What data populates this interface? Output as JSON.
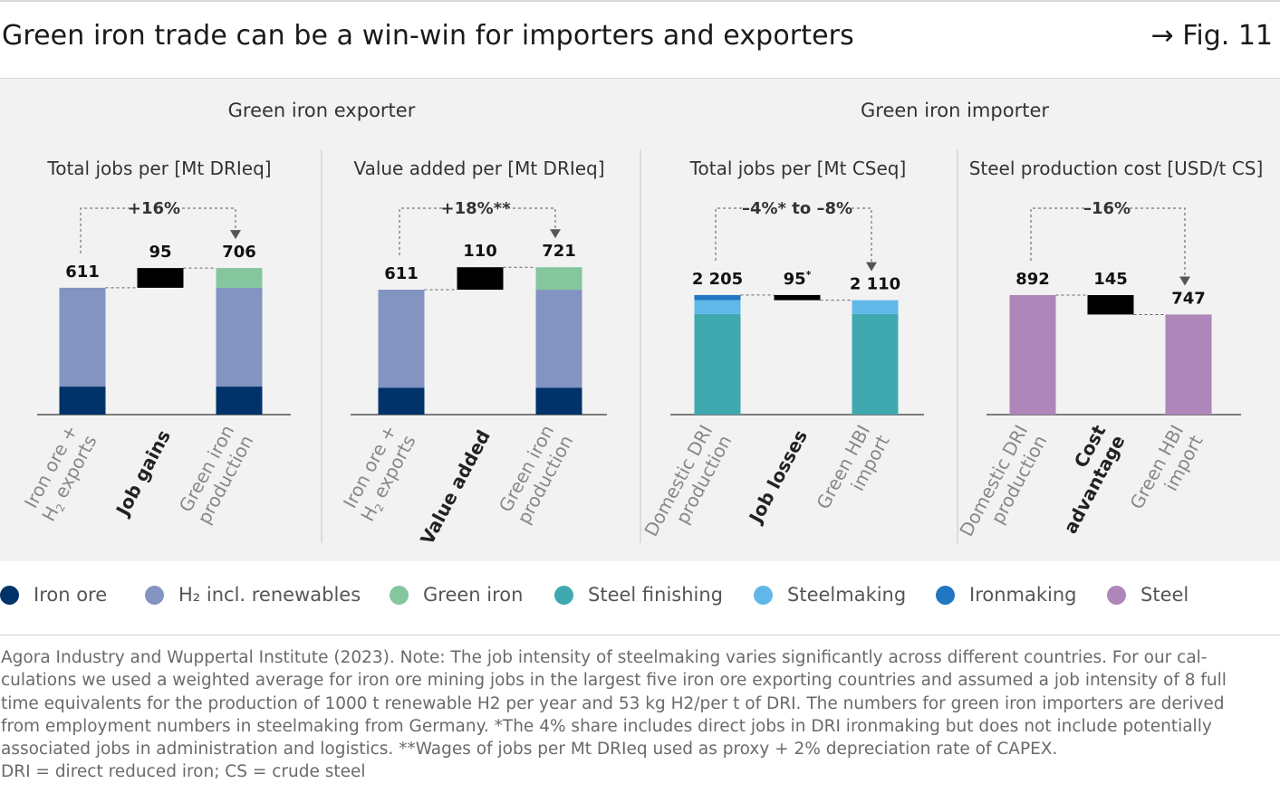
{
  "header": {
    "title": "Green iron trade can be a win-win for importers and exporters",
    "fig_ref": "→ Fig. 11"
  },
  "groups": [
    {
      "label": "Green iron exporter"
    },
    {
      "label": "Green iron importer"
    }
  ],
  "colors": {
    "iron_ore": "#00336a",
    "h2_renewables": "#8394c3",
    "green_iron": "#84c69e",
    "steel_finishing": "#3fa9af",
    "steelmaking": "#60b8e8",
    "ironmaking": "#2176c1",
    "steel": "#ae86b9",
    "delta": "#000000",
    "axis": "#555555"
  },
  "chart_data": [
    {
      "type": "bar",
      "title": "Total jobs per [Mt DRIeq]",
      "categories": [
        "Iron ore + H₂ exports",
        "Job gains",
        "Green iron production"
      ],
      "bars": [
        {
          "kind": "stack",
          "segments": [
            {
              "series": "Iron ore",
              "value": 135
            },
            {
              "series": "H₂ incl. renewables",
              "value": 476
            }
          ],
          "label": "611"
        },
        {
          "kind": "delta",
          "from": 611,
          "to": 706,
          "label": "95"
        },
        {
          "kind": "stack",
          "segments": [
            {
              "series": "Iron ore",
              "value": 135
            },
            {
              "series": "H₂ incl. renewables",
              "value": 476
            },
            {
              "series": "Green iron",
              "value": 95
            }
          ],
          "label": "706"
        }
      ],
      "change_label": "+16%"
    },
    {
      "type": "bar",
      "title": "Value added per [Mt DRIeq]",
      "categories": [
        "Iron ore + H₂ exports",
        "Value added",
        "Green iron production"
      ],
      "bars": [
        {
          "kind": "stack",
          "segments": [
            {
              "series": "Iron ore",
              "value": 132
            },
            {
              "series": "H₂ incl. renewables",
              "value": 479
            }
          ],
          "label": "611"
        },
        {
          "kind": "delta",
          "from": 611,
          "to": 721,
          "label": "110"
        },
        {
          "kind": "stack",
          "segments": [
            {
              "series": "Iron ore",
              "value": 132
            },
            {
              "series": "H₂ incl. renewables",
              "value": 479
            },
            {
              "series": "Green iron",
              "value": 110
            }
          ],
          "label": "721"
        }
      ],
      "change_label": "+18%**"
    },
    {
      "type": "bar",
      "title": "Total jobs per [Mt CSeq]",
      "categories": [
        "Domestic DRI production",
        "Job losses",
        "Green HBI import"
      ],
      "bars": [
        {
          "kind": "stack",
          "segments": [
            {
              "series": "Steel finishing",
              "value": 1855
            },
            {
              "series": "Steelmaking",
              "value": 255
            },
            {
              "series": "Ironmaking",
              "value": 95
            }
          ],
          "label": "2 205"
        },
        {
          "kind": "delta",
          "from": 2205,
          "to": 2110,
          "label": "95*"
        },
        {
          "kind": "stack",
          "segments": [
            {
              "series": "Steel finishing",
              "value": 1855
            },
            {
              "series": "Steelmaking",
              "value": 255
            }
          ],
          "label": "2 110"
        }
      ],
      "change_label": "–4%* to –8%"
    },
    {
      "type": "bar",
      "title": "Steel production cost [USD/t CS]",
      "categories": [
        "Domestic DRI production",
        "Cost advantage",
        "Green HBI import"
      ],
      "bars": [
        {
          "kind": "stack",
          "segments": [
            {
              "series": "Steel",
              "value": 892
            }
          ],
          "label": "892"
        },
        {
          "kind": "delta",
          "from": 892,
          "to": 747,
          "label": "145"
        },
        {
          "kind": "stack",
          "segments": [
            {
              "series": "Steel",
              "value": 747
            }
          ],
          "label": "747"
        }
      ],
      "change_label": "–16%"
    }
  ],
  "legend": [
    {
      "label": "Iron ore",
      "color": "#00336a"
    },
    {
      "label": "H₂ incl. renewables",
      "color": "#8394c3"
    },
    {
      "label": "Green iron",
      "color": "#84c69e"
    },
    {
      "label": "Steel finishing",
      "color": "#3fa9af"
    },
    {
      "label": "Steelmaking",
      "color": "#60b8e8"
    },
    {
      "label": "Ironmaking",
      "color": "#2176c1"
    },
    {
      "label": "Steel",
      "color": "#ae86b9"
    }
  ],
  "footnote": {
    "lines": [
      "Agora Industry and Wuppertal Institute (2023). Note: The job intensity of steelmaking varies significantly across different countries. For our cal-",
      "culations we used a weighted average for iron ore mining jobs in the largest five iron ore exporting countries and assumed a job intensity of 8 full",
      "time equivalents for the production of 1000 t renewable H2 per year and 53 kg H2/per t of DRI. The numbers for green iron importers are derived",
      "from employment numbers in steelmaking from Germany. *The 4% share includes direct jobs in DRI ironmaking but does not include potentially",
      "associated jobs in administration and logistics. **Wages of jobs per Mt DRIeq used as proxy + 2% depreciation rate of CAPEX.",
      "DRI = direct reduced iron; CS = crude steel"
    ]
  }
}
